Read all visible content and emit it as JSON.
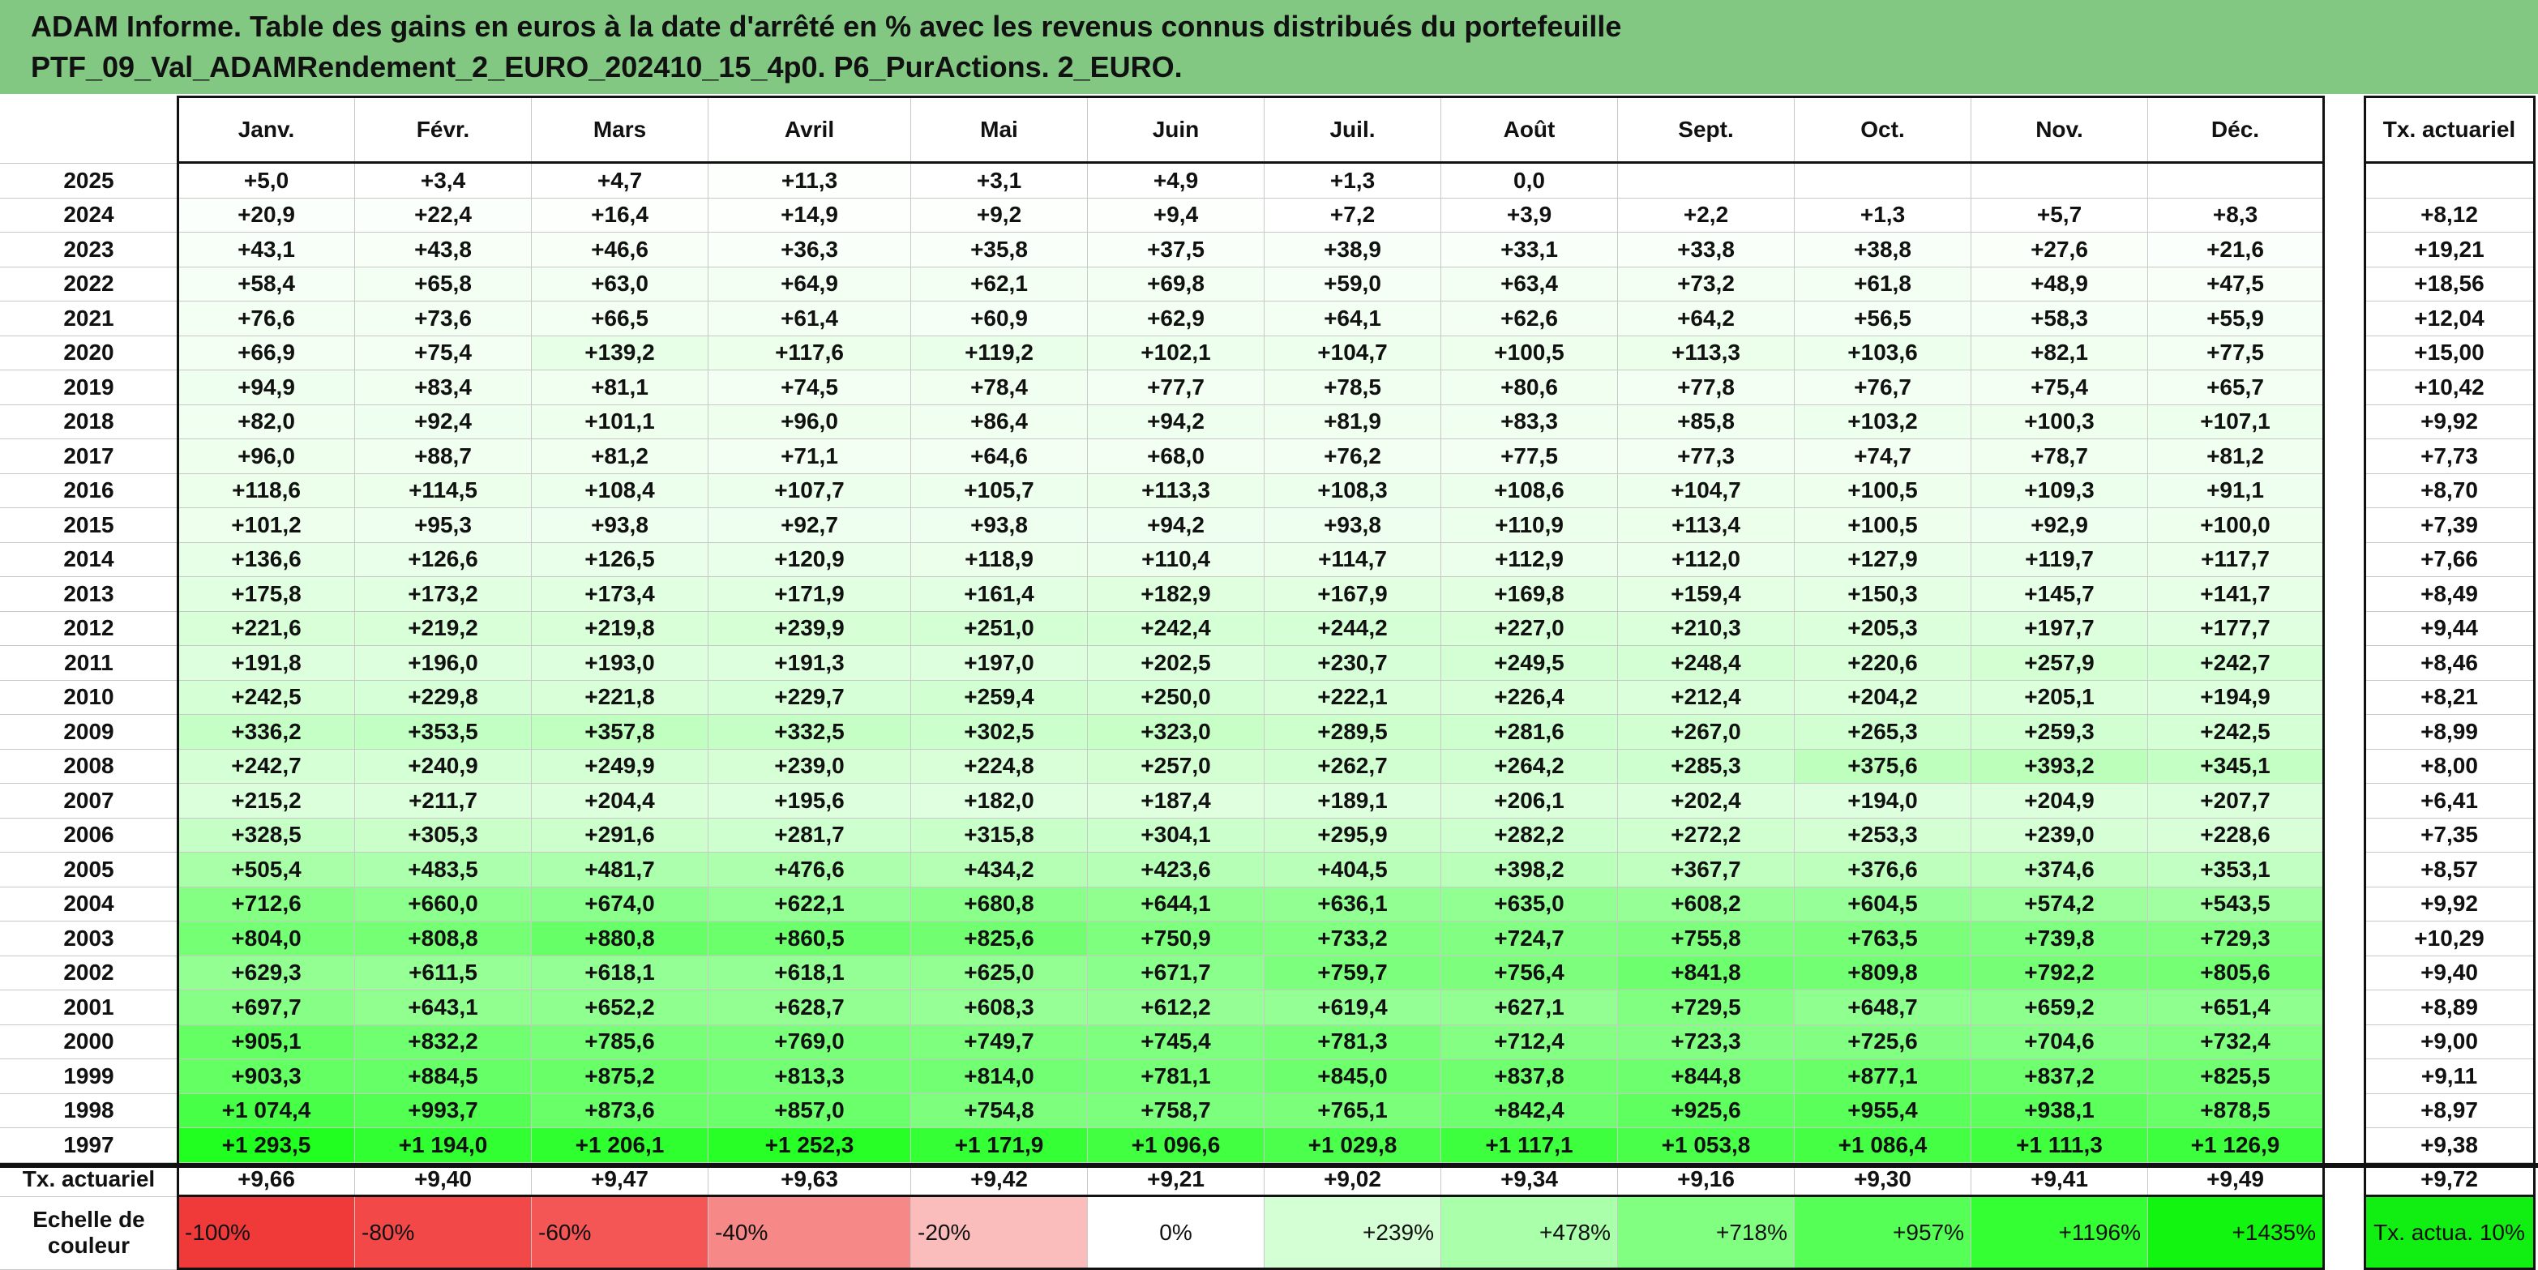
{
  "header": {
    "title_lines": [
      "ADAM Informe. Table des gains en euros à la date d'arrêté en % avec les revenus connus distribués du portefeuille",
      "PTF_09_Val_ADAMRendement_2_EURO_202410_15_4p0. P6_PurActions. 2_EURO."
    ]
  },
  "table": {
    "columns": [
      "Janv.",
      "Févr.",
      "Mars",
      "Avril",
      "Mai",
      "Juin",
      "Juil.",
      "Août",
      "Sept.",
      "Oct.",
      "Nov.",
      "Déc."
    ],
    "tx_header": "Tx. actuariel",
    "rows": [
      [
        "2025",
        "+5,0",
        "+3,4",
        "+4,7",
        "+11,3",
        "+3,1",
        "+4,9",
        "+1,3",
        "0,0",
        null,
        null,
        null,
        null,
        null
      ],
      [
        "2024",
        "+20,9",
        "+22,4",
        "+16,4",
        "+14,9",
        "+9,2",
        "+9,4",
        "+7,2",
        "+3,9",
        "+2,2",
        "+1,3",
        "+5,7",
        "+8,3",
        "+8,12"
      ],
      [
        "2023",
        "+43,1",
        "+43,8",
        "+46,6",
        "+36,3",
        "+35,8",
        "+37,5",
        "+38,9",
        "+33,1",
        "+33,8",
        "+38,8",
        "+27,6",
        "+21,6",
        "+19,21"
      ],
      [
        "2022",
        "+58,4",
        "+65,8",
        "+63,0",
        "+64,9",
        "+62,1",
        "+69,8",
        "+59,0",
        "+63,4",
        "+73,2",
        "+61,8",
        "+48,9",
        "+47,5",
        "+18,56"
      ],
      [
        "2021",
        "+76,6",
        "+73,6",
        "+66,5",
        "+61,4",
        "+60,9",
        "+62,9",
        "+64,1",
        "+62,6",
        "+64,2",
        "+56,5",
        "+58,3",
        "+55,9",
        "+12,04"
      ],
      [
        "2020",
        "+66,9",
        "+75,4",
        "+139,2",
        "+117,6",
        "+119,2",
        "+102,1",
        "+104,7",
        "+100,5",
        "+113,3",
        "+103,6",
        "+82,1",
        "+77,5",
        "+15,00"
      ],
      [
        "2019",
        "+94,9",
        "+83,4",
        "+81,1",
        "+74,5",
        "+78,4",
        "+77,7",
        "+78,5",
        "+80,6",
        "+77,8",
        "+76,7",
        "+75,4",
        "+65,7",
        "+10,42"
      ],
      [
        "2018",
        "+82,0",
        "+92,4",
        "+101,1",
        "+96,0",
        "+86,4",
        "+94,2",
        "+81,9",
        "+83,3",
        "+85,8",
        "+103,2",
        "+100,3",
        "+107,1",
        "+9,92"
      ],
      [
        "2017",
        "+96,0",
        "+88,7",
        "+81,2",
        "+71,1",
        "+64,6",
        "+68,0",
        "+76,2",
        "+77,5",
        "+77,3",
        "+74,7",
        "+78,7",
        "+81,2",
        "+7,73"
      ],
      [
        "2016",
        "+118,6",
        "+114,5",
        "+108,4",
        "+107,7",
        "+105,7",
        "+113,3",
        "+108,3",
        "+108,6",
        "+104,7",
        "+100,5",
        "+109,3",
        "+91,1",
        "+8,70"
      ],
      [
        "2015",
        "+101,2",
        "+95,3",
        "+93,8",
        "+92,7",
        "+93,8",
        "+94,2",
        "+93,8",
        "+110,9",
        "+113,4",
        "+100,5",
        "+92,9",
        "+100,0",
        "+7,39"
      ],
      [
        "2014",
        "+136,6",
        "+126,6",
        "+126,5",
        "+120,9",
        "+118,9",
        "+110,4",
        "+114,7",
        "+112,9",
        "+112,0",
        "+127,9",
        "+119,7",
        "+117,7",
        "+7,66"
      ],
      [
        "2013",
        "+175,8",
        "+173,2",
        "+173,4",
        "+171,9",
        "+161,4",
        "+182,9",
        "+167,9",
        "+169,8",
        "+159,4",
        "+150,3",
        "+145,7",
        "+141,7",
        "+8,49"
      ],
      [
        "2012",
        "+221,6",
        "+219,2",
        "+219,8",
        "+239,9",
        "+251,0",
        "+242,4",
        "+244,2",
        "+227,0",
        "+210,3",
        "+205,3",
        "+197,7",
        "+177,7",
        "+9,44"
      ],
      [
        "2011",
        "+191,8",
        "+196,0",
        "+193,0",
        "+191,3",
        "+197,0",
        "+202,5",
        "+230,7",
        "+249,5",
        "+248,4",
        "+220,6",
        "+257,9",
        "+242,7",
        "+8,46"
      ],
      [
        "2010",
        "+242,5",
        "+229,8",
        "+221,8",
        "+229,7",
        "+259,4",
        "+250,0",
        "+222,1",
        "+226,4",
        "+212,4",
        "+204,2",
        "+205,1",
        "+194,9",
        "+8,21"
      ],
      [
        "2009",
        "+336,2",
        "+353,5",
        "+357,8",
        "+332,5",
        "+302,5",
        "+323,0",
        "+289,5",
        "+281,6",
        "+267,0",
        "+265,3",
        "+259,3",
        "+242,5",
        "+8,99"
      ],
      [
        "2008",
        "+242,7",
        "+240,9",
        "+249,9",
        "+239,0",
        "+224,8",
        "+257,0",
        "+262,7",
        "+264,2",
        "+285,3",
        "+375,6",
        "+393,2",
        "+345,1",
        "+8,00"
      ],
      [
        "2007",
        "+215,2",
        "+211,7",
        "+204,4",
        "+195,6",
        "+182,0",
        "+187,4",
        "+189,1",
        "+206,1",
        "+202,4",
        "+194,0",
        "+204,9",
        "+207,7",
        "+6,41"
      ],
      [
        "2006",
        "+328,5",
        "+305,3",
        "+291,6",
        "+281,7",
        "+315,8",
        "+304,1",
        "+295,9",
        "+282,2",
        "+272,2",
        "+253,3",
        "+239,0",
        "+228,6",
        "+7,35"
      ],
      [
        "2005",
        "+505,4",
        "+483,5",
        "+481,7",
        "+476,6",
        "+434,2",
        "+423,6",
        "+404,5",
        "+398,2",
        "+367,7",
        "+376,6",
        "+374,6",
        "+353,1",
        "+8,57"
      ],
      [
        "2004",
        "+712,6",
        "+660,0",
        "+674,0",
        "+622,1",
        "+680,8",
        "+644,1",
        "+636,1",
        "+635,0",
        "+608,2",
        "+604,5",
        "+574,2",
        "+543,5",
        "+9,92"
      ],
      [
        "2003",
        "+804,0",
        "+808,8",
        "+880,8",
        "+860,5",
        "+825,6",
        "+750,9",
        "+733,2",
        "+724,7",
        "+755,8",
        "+763,5",
        "+739,8",
        "+729,3",
        "+10,29"
      ],
      [
        "2002",
        "+629,3",
        "+611,5",
        "+618,1",
        "+618,1",
        "+625,0",
        "+671,7",
        "+759,7",
        "+756,4",
        "+841,8",
        "+809,8",
        "+792,2",
        "+805,6",
        "+9,40"
      ],
      [
        "2001",
        "+697,7",
        "+643,1",
        "+652,2",
        "+628,7",
        "+608,3",
        "+612,2",
        "+619,4",
        "+627,1",
        "+729,5",
        "+648,7",
        "+659,2",
        "+651,4",
        "+8,89"
      ],
      [
        "2000",
        "+905,1",
        "+832,2",
        "+785,6",
        "+769,0",
        "+749,7",
        "+745,4",
        "+781,3",
        "+712,4",
        "+723,3",
        "+725,6",
        "+704,6",
        "+732,4",
        "+9,00"
      ],
      [
        "1999",
        "+903,3",
        "+884,5",
        "+875,2",
        "+813,3",
        "+814,0",
        "+781,1",
        "+845,0",
        "+837,8",
        "+844,8",
        "+877,1",
        "+837,2",
        "+825,5",
        "+9,11"
      ],
      [
        "1998",
        "+1 074,4",
        "+993,7",
        "+873,6",
        "+857,0",
        "+754,8",
        "+758,7",
        "+765,1",
        "+842,4",
        "+925,6",
        "+955,4",
        "+938,1",
        "+878,5",
        "+8,97"
      ],
      [
        "1997",
        "+1 293,5",
        "+1 194,0",
        "+1 206,1",
        "+1 252,3",
        "+1 171,9",
        "+1 096,6",
        "+1 029,8",
        "+1 117,1",
        "+1 053,8",
        "+1 086,4",
        "+1 111,3",
        "+1 126,9",
        "+9,38"
      ]
    ],
    "footer": [
      "Tx. actuariel",
      "+9,66",
      "+9,40",
      "+9,47",
      "+9,63",
      "+9,42",
      "+9,21",
      "+9,02",
      "+9,34",
      "+9,16",
      "+9,30",
      "+9,41",
      "+9,49",
      "+9,72"
    ],
    "scale": [
      "Echelle de couleur",
      "-100%",
      "-80%",
      "-60%",
      "-40%",
      "-20%",
      "0%",
      "+239%",
      "+478%",
      "+718%",
      "+957%",
      "+1196%",
      "+1435%",
      "Tx. actua. 10%"
    ]
  }
}
